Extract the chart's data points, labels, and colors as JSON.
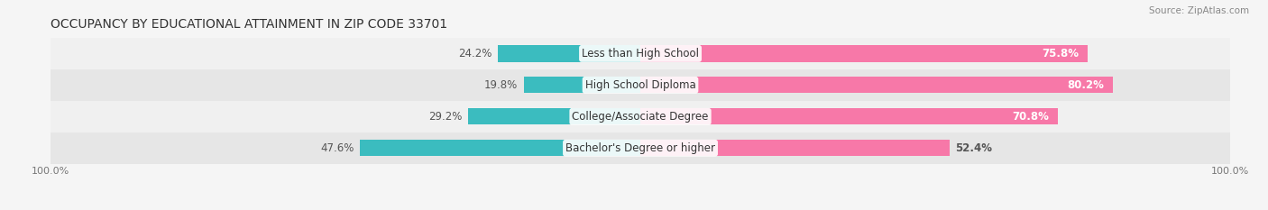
{
  "title": "OCCUPANCY BY EDUCATIONAL ATTAINMENT IN ZIP CODE 33701",
  "source": "Source: ZipAtlas.com",
  "categories": [
    "Less than High School",
    "High School Diploma",
    "College/Associate Degree",
    "Bachelor's Degree or higher"
  ],
  "owner_pct": [
    24.2,
    19.8,
    29.2,
    47.6
  ],
  "renter_pct": [
    75.8,
    80.2,
    70.8,
    52.4
  ],
  "renter_label_white": [
    true,
    true,
    true,
    false
  ],
  "owner_color": "#3bbcbf",
  "renter_color": "#f778a8",
  "row_bg_even": "#f0f0f0",
  "row_bg_odd": "#e6e6e6",
  "fig_bg": "#f5f5f5",
  "title_fontsize": 10,
  "label_fontsize": 8.5,
  "tick_fontsize": 8,
  "legend_fontsize": 8.5,
  "bar_height": 0.52,
  "source_fontsize": 7.5
}
